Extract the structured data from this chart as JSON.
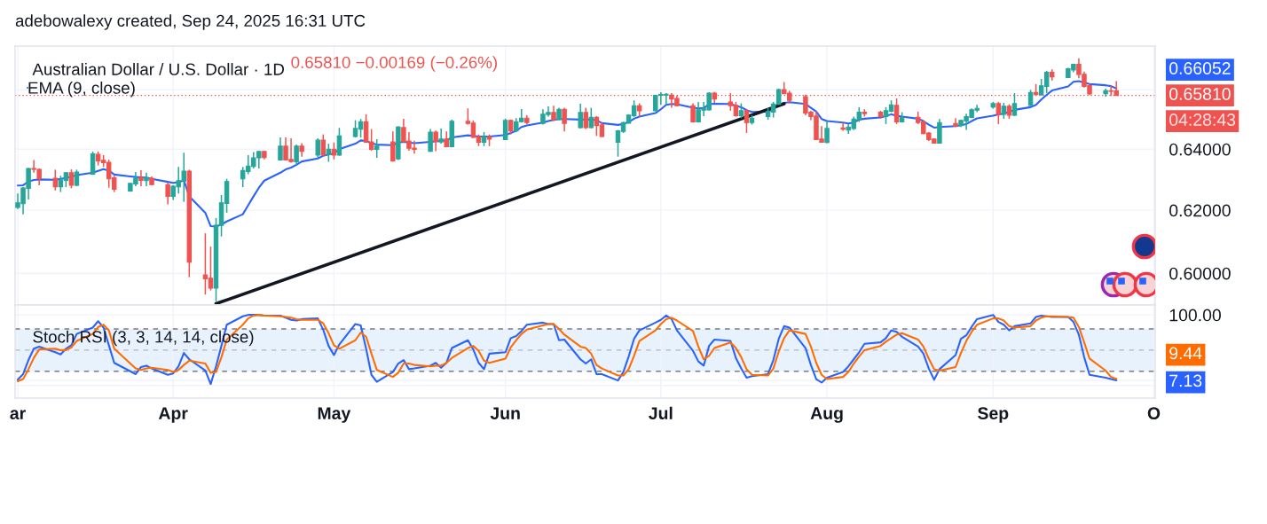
{
  "chart_data": [
    {
      "type": "candlestick",
      "title": "Australian Dollar / U.S. Dollar · 1D",
      "annotations": [
        "adebowalexy created, Sep 24, 2025 16:31 UTC",
        "0.65810 −0.00169 (−0.26%)",
        "04:28:43",
        "0.66052"
      ],
      "x": [
        "2025-03-03",
        "2025-03-04",
        "2025-03-05",
        "2025-03-06",
        "2025-03-07",
        "2025-03-10",
        "2025-03-11",
        "2025-03-12",
        "2025-03-13",
        "2025-03-14",
        "2025-03-17",
        "2025-03-18",
        "2025-03-19",
        "2025-03-20",
        "2025-03-21",
        "2025-03-24",
        "2025-03-25",
        "2025-03-26",
        "2025-03-27",
        "2025-03-28",
        "2025-03-31",
        "2025-04-01",
        "2025-04-02",
        "2025-04-03",
        "2025-04-04",
        "2025-04-07",
        "2025-04-08",
        "2025-04-09",
        "2025-04-10",
        "2025-04-11",
        "2025-04-14",
        "2025-04-15",
        "2025-04-16",
        "2025-04-17",
        "2025-04-18",
        "2025-04-21",
        "2025-04-22",
        "2025-04-23",
        "2025-04-24",
        "2025-04-25",
        "2025-04-28",
        "2025-04-29",
        "2025-04-30",
        "2025-05-01",
        "2025-05-02",
        "2025-05-05",
        "2025-05-06",
        "2025-05-07",
        "2025-05-08",
        "2025-05-09",
        "2025-05-12",
        "2025-05-13",
        "2025-05-14",
        "2025-05-15",
        "2025-05-16",
        "2025-05-19",
        "2025-05-20",
        "2025-05-21",
        "2025-05-22",
        "2025-05-23",
        "2025-05-26",
        "2025-05-27",
        "2025-05-28",
        "2025-05-29",
        "2025-05-30",
        "2025-06-02",
        "2025-06-03",
        "2025-06-04",
        "2025-06-05",
        "2025-06-06",
        "2025-06-09",
        "2025-06-10",
        "2025-06-11",
        "2025-06-12",
        "2025-06-13",
        "2025-06-16",
        "2025-06-17",
        "2025-06-18",
        "2025-06-19",
        "2025-06-20",
        "2025-06-23",
        "2025-06-24",
        "2025-06-25",
        "2025-06-26",
        "2025-06-27",
        "2025-06-30",
        "2025-07-01",
        "2025-07-02",
        "2025-07-03",
        "2025-07-04",
        "2025-07-07",
        "2025-07-08",
        "2025-07-09",
        "2025-07-10",
        "2025-07-11",
        "2025-07-14",
        "2025-07-15",
        "2025-07-16",
        "2025-07-17",
        "2025-07-18",
        "2025-07-21",
        "2025-07-22",
        "2025-07-23",
        "2025-07-24",
        "2025-07-25",
        "2025-07-28",
        "2025-07-29",
        "2025-07-30",
        "2025-07-31",
        "2025-08-01",
        "2025-08-04",
        "2025-08-05",
        "2025-08-06",
        "2025-08-07",
        "2025-08-08",
        "2025-08-11",
        "2025-08-12",
        "2025-08-13",
        "2025-08-14",
        "2025-08-15",
        "2025-08-18",
        "2025-08-19",
        "2025-08-20",
        "2025-08-21",
        "2025-08-22",
        "2025-08-25",
        "2025-08-26",
        "2025-08-27",
        "2025-08-28",
        "2025-08-29",
        "2025-09-01",
        "2025-09-02",
        "2025-09-03",
        "2025-09-04",
        "2025-09-05",
        "2025-09-08",
        "2025-09-09",
        "2025-09-10",
        "2025-09-11",
        "2025-09-12",
        "2025-09-15",
        "2025-09-16",
        "2025-09-17",
        "2025-09-18",
        "2025-09-19",
        "2025-09-22",
        "2025-09-23",
        "2025-09-24"
      ],
      "ohlc": [
        [
          0.6209,
          0.6254,
          0.6204,
          0.6224
        ],
        [
          0.6221,
          0.6275,
          0.6187,
          0.6272
        ],
        [
          0.6271,
          0.6338,
          0.6235,
          0.6336
        ],
        [
          0.6336,
          0.6364,
          0.6322,
          0.6333
        ],
        [
          0.6333,
          0.6336,
          0.6281,
          0.6302
        ],
        [
          0.6304,
          0.6332,
          0.6264,
          0.6276
        ],
        [
          0.6276,
          0.6312,
          0.6259,
          0.6298
        ],
        [
          0.6297,
          0.6324,
          0.6275,
          0.6322
        ],
        [
          0.6322,
          0.6333,
          0.6271,
          0.6281
        ],
        [
          0.6281,
          0.6332,
          0.6278,
          0.6324
        ],
        [
          0.6317,
          0.6392,
          0.6315,
          0.6384
        ],
        [
          0.6383,
          0.6392,
          0.6346,
          0.6361
        ],
        [
          0.6363,
          0.638,
          0.6341,
          0.6355
        ],
        [
          0.6356,
          0.6365,
          0.6273,
          0.6302
        ],
        [
          0.6305,
          0.6312,
          0.6259,
          0.6268
        ],
        [
          0.6262,
          0.6289,
          0.626,
          0.6287
        ],
        [
          0.6285,
          0.6324,
          0.6278,
          0.6304
        ],
        [
          0.6306,
          0.633,
          0.6278,
          0.6297
        ],
        [
          0.6296,
          0.6322,
          0.6278,
          0.6306
        ],
        [
          0.6304,
          0.631,
          0.6281,
          0.6283
        ],
        [
          0.6283,
          0.6291,
          0.6219,
          0.6245
        ],
        [
          0.6245,
          0.6281,
          0.6233,
          0.6278
        ],
        [
          0.6276,
          0.6341,
          0.6254,
          0.6296
        ],
        [
          0.6295,
          0.6388,
          0.6227,
          0.6327
        ],
        [
          0.6327,
          0.6332,
          0.5988,
          0.6035
        ],
        [
          0.5995,
          0.6126,
          0.5934,
          0.5983
        ],
        [
          0.5985,
          0.6084,
          0.5947,
          0.5954
        ],
        [
          0.5954,
          0.6175,
          0.5913,
          0.6152
        ],
        [
          0.6151,
          0.6249,
          0.6116,
          0.6224
        ],
        [
          0.6222,
          0.6302,
          0.6192,
          0.6293
        ],
        [
          0.6302,
          0.6341,
          0.6275,
          0.6329
        ],
        [
          0.6326,
          0.638,
          0.6317,
          0.6344
        ],
        [
          0.6343,
          0.639,
          0.6336,
          0.6371
        ],
        [
          0.6371,
          0.6393,
          0.6336,
          0.6392
        ],
        [
          0.6392,
          0.6395,
          0.6366,
          0.6372
        ],
        [
          0.6364,
          0.6439,
          0.6362,
          0.641
        ],
        [
          0.641,
          0.6439,
          0.6363,
          0.6364
        ],
        [
          0.6366,
          0.6436,
          0.6355,
          0.6359
        ],
        [
          0.6358,
          0.6415,
          0.6348,
          0.641
        ],
        [
          0.641,
          0.642,
          0.6375,
          0.6393
        ],
        [
          0.638,
          0.6436,
          0.6369,
          0.643
        ],
        [
          0.643,
          0.6449,
          0.6378,
          0.638
        ],
        [
          0.6382,
          0.6418,
          0.6358,
          0.64
        ],
        [
          0.64,
          0.6422,
          0.6366,
          0.638
        ],
        [
          0.638,
          0.6471,
          0.6378,
          0.6444
        ],
        [
          0.6442,
          0.6497,
          0.6439,
          0.6469
        ],
        [
          0.6467,
          0.6501,
          0.6439,
          0.6492
        ],
        [
          0.6492,
          0.6517,
          0.6421,
          0.6423
        ],
        [
          0.6424,
          0.6467,
          0.6395,
          0.6399
        ],
        [
          0.6399,
          0.6433,
          0.6371,
          0.641
        ],
        [
          0.6424,
          0.6459,
          0.6358,
          0.6361
        ],
        [
          0.6368,
          0.6477,
          0.6364,
          0.6474
        ],
        [
          0.6472,
          0.6502,
          0.6422,
          0.6425
        ],
        [
          0.6427,
          0.6457,
          0.6395,
          0.6403
        ],
        [
          0.6403,
          0.6428,
          0.6385,
          0.6399
        ],
        [
          0.6393,
          0.6467,
          0.6391,
          0.6457
        ],
        [
          0.6457,
          0.6462,
          0.6393,
          0.6425
        ],
        [
          0.6424,
          0.6469,
          0.6418,
          0.6434
        ],
        [
          0.6434,
          0.6459,
          0.6406,
          0.6408
        ],
        [
          0.6408,
          0.6499,
          0.6406,
          0.6493
        ],
        [
          0.6493,
          0.6537,
          0.6482,
          0.6486
        ],
        [
          0.6487,
          0.6496,
          0.6437,
          0.6439
        ],
        [
          0.6441,
          0.6449,
          0.641,
          0.6423
        ],
        [
          0.6423,
          0.6457,
          0.641,
          0.6441
        ],
        [
          0.6441,
          0.6449,
          0.641,
          0.6433
        ],
        [
          0.6432,
          0.6502,
          0.643,
          0.6496
        ],
        [
          0.6496,
          0.6499,
          0.6449,
          0.6461
        ],
        [
          0.6461,
          0.6504,
          0.6457,
          0.6492
        ],
        [
          0.6492,
          0.6535,
          0.6489,
          0.6504
        ],
        [
          0.6504,
          0.6514,
          0.6484,
          0.6489
        ],
        [
          0.6486,
          0.6534,
          0.6482,
          0.6517
        ],
        [
          0.6516,
          0.6544,
          0.6509,
          0.6523
        ],
        [
          0.6523,
          0.6546,
          0.6494,
          0.6499
        ],
        [
          0.6499,
          0.6539,
          0.6497,
          0.6534
        ],
        [
          0.6534,
          0.6539,
          0.6459,
          0.6486
        ],
        [
          0.6472,
          0.6553,
          0.6469,
          0.6523
        ],
        [
          0.6523,
          0.6539,
          0.6467,
          0.6472
        ],
        [
          0.6472,
          0.6539,
          0.647,
          0.6507
        ],
        [
          0.6507,
          0.6511,
          0.6444,
          0.6479
        ],
        [
          0.6481,
          0.6489,
          0.644,
          0.6442
        ],
        [
          0.6423,
          0.6464,
          0.6375,
          0.6461
        ],
        [
          0.6459,
          0.6492,
          0.6454,
          0.6489
        ],
        [
          0.6487,
          0.6517,
          0.6486,
          0.6514
        ],
        [
          0.6512,
          0.6564,
          0.6507,
          0.6546
        ],
        [
          0.6546,
          0.6554,
          0.6509,
          0.6529
        ],
        [
          0.6529,
          0.6582,
          0.6527,
          0.6581
        ],
        [
          0.6582,
          0.6592,
          0.6549,
          0.6585
        ],
        [
          0.6582,
          0.6589,
          0.6549,
          0.6585
        ],
        [
          0.6582,
          0.6589,
          0.6539,
          0.6569
        ],
        [
          0.6571,
          0.6581,
          0.6544,
          0.6546
        ],
        [
          0.6546,
          0.6554,
          0.6489,
          0.6491
        ],
        [
          0.6491,
          0.6559,
          0.6489,
          0.6532
        ],
        [
          0.6531,
          0.6559,
          0.6511,
          0.6537
        ],
        [
          0.6532,
          0.6592,
          0.653,
          0.6589
        ],
        [
          0.6589,
          0.6594,
          0.6556,
          0.6569
        ],
        [
          0.6559,
          0.6589,
          0.6529,
          0.6546
        ],
        [
          0.6547,
          0.6559,
          0.6509,
          0.6512
        ],
        [
          0.6512,
          0.6554,
          0.6504,
          0.6529
        ],
        [
          0.6529,
          0.6534,
          0.6454,
          0.6489
        ],
        [
          0.6489,
          0.6514,
          0.6482,
          0.6504
        ],
        [
          0.6509,
          0.6539,
          0.6499,
          0.6526
        ],
        [
          0.6524,
          0.6559,
          0.6506,
          0.6552
        ],
        [
          0.6551,
          0.6604,
          0.6549,
          0.6601
        ],
        [
          0.6601,
          0.6627,
          0.6586,
          0.6587
        ],
        [
          0.6589,
          0.6597,
          0.6554,
          0.6564
        ],
        [
          0.6577,
          0.6584,
          0.6514,
          0.6521
        ],
        [
          0.6524,
          0.6529,
          0.6497,
          0.6509
        ],
        [
          0.6511,
          0.6527,
          0.643,
          0.6432
        ],
        [
          0.6434,
          0.6477,
          0.6421,
          0.6423
        ],
        [
          0.6422,
          0.6494,
          0.642,
          0.6469
        ],
        [
          0.6471,
          0.6489,
          0.6461,
          0.6467
        ],
        [
          0.6464,
          0.6484,
          0.6451,
          0.6474
        ],
        [
          0.6469,
          0.6509,
          0.6464,
          0.6501
        ],
        [
          0.6499,
          0.6541,
          0.6491,
          0.6524
        ],
        [
          0.6524,
          0.6534,
          0.6509,
          0.6519
        ],
        [
          0.6524,
          0.6529,
          0.6502,
          0.6509
        ],
        [
          0.6509,
          0.6541,
          0.6484,
          0.6529
        ],
        [
          0.6527,
          0.6564,
          0.6524,
          0.6549
        ],
        [
          0.6547,
          0.6571,
          0.6484,
          0.6491
        ],
        [
          0.6491,
          0.6524,
          0.6489,
          0.6506
        ],
        [
          0.6507,
          0.6526,
          0.6484,
          0.6489
        ],
        [
          0.6491,
          0.6496,
          0.645,
          0.6452
        ],
        [
          0.6454,
          0.6457,
          0.6427,
          0.6432
        ],
        [
          0.6434,
          0.6436,
          0.6418,
          0.642
        ],
        [
          0.642,
          0.6501,
          0.6418,
          0.6489
        ],
        [
          0.6486,
          0.6504,
          0.6474,
          0.6477
        ],
        [
          0.6479,
          0.6499,
          0.6474,
          0.6496
        ],
        [
          0.6494,
          0.6519,
          0.6464,
          0.6509
        ],
        [
          0.6506,
          0.6537,
          0.6504,
          0.6532
        ],
        [
          0.6531,
          0.6549,
          0.6524,
          0.6537
        ],
        [
          0.6542,
          0.6559,
          0.6536,
          0.6553
        ],
        [
          0.6553,
          0.6559,
          0.6484,
          0.6517
        ],
        [
          0.6517,
          0.6556,
          0.6502,
          0.6544
        ],
        [
          0.6544,
          0.6551,
          0.6502,
          0.6514
        ],
        [
          0.6514,
          0.6589,
          0.6511,
          0.6553
        ],
        [
          0.6547,
          0.66,
          0.6545,
          0.6591
        ],
        [
          0.6591,
          0.662,
          0.6582,
          0.6584
        ],
        [
          0.6583,
          0.6638,
          0.6581,
          0.6614
        ],
        [
          0.6612,
          0.6666,
          0.6589,
          0.6661
        ],
        [
          0.6661,
          0.6671,
          0.6632,
          0.6645
        ],
        [
          0.6643,
          0.6676,
          0.6641,
          0.6673
        ],
        [
          0.6669,
          0.6689,
          0.6661,
          0.6688
        ],
        [
          0.6688,
          0.6709,
          0.664,
          0.6653
        ],
        [
          0.6654,
          0.6663,
          0.6608,
          0.6612
        ],
        [
          0.6615,
          0.662,
          0.6582,
          0.6586
        ],
        [
          0.6587,
          0.6604,
          0.6577,
          0.6597
        ],
        [
          0.6597,
          0.6615,
          0.6579,
          0.6595
        ],
        [
          0.6597,
          0.663,
          0.6581,
          0.6581
        ]
      ],
      "colors": [
        "#26a69a",
        "#26a69a",
        "#26a69a",
        "#ef5350",
        "#ef5350",
        "#ef5350",
        "#26a69a",
        "#26a69a",
        "#ef5350",
        "#26a69a",
        "#26a69a",
        "#ef5350",
        "#ef5350",
        "#ef5350",
        "#ef5350",
        "#26a69a",
        "#26a69a",
        "#ef5350",
        "#26a69a",
        "#ef5350",
        "#ef5350",
        "#26a69a",
        "#26a69a",
        "#26a69a",
        "#ef5350",
        "#ef5350",
        "#ef5350",
        "#26a69a",
        "#26a69a",
        "#26a69a",
        "#26a69a",
        "#26a69a",
        "#26a69a",
        "#26a69a",
        "#ef5350",
        "#26a69a",
        "#ef5350",
        "#ef5350",
        "#26a69a",
        "#ef5350",
        "#26a69a",
        "#ef5350",
        "#26a69a",
        "#ef5350",
        "#26a69a",
        "#26a69a",
        "#26a69a",
        "#ef5350",
        "#ef5350",
        "#26a69a",
        "#ef5350",
        "#26a69a",
        "#ef5350",
        "#ef5350",
        "#ef5350",
        "#26a69a",
        "#ef5350",
        "#26a69a",
        "#ef5350",
        "#26a69a",
        "#ef5350",
        "#ef5350",
        "#ef5350",
        "#26a69a",
        "#ef5350",
        "#26a69a",
        "#ef5350",
        "#26a69a",
        "#26a69a",
        "#ef5350",
        "#26a69a",
        "#26a69a",
        "#ef5350",
        "#26a69a",
        "#ef5350",
        "#26a69a",
        "#ef5350",
        "#26a69a",
        "#ef5350",
        "#ef5350",
        "#26a69a",
        "#26a69a",
        "#26a69a",
        "#26a69a",
        "#ef5350",
        "#26a69a",
        "#26a69a",
        "#26a69a",
        "#ef5350",
        "#ef5350",
        "#ef5350",
        "#26a69a",
        "#26a69a",
        "#26a69a",
        "#ef5350",
        "#ef5350",
        "#ef5350",
        "#26a69a",
        "#ef5350",
        "#26a69a",
        "#26a69a",
        "#26a69a",
        "#26a69a",
        "#ef5350",
        "#ef5350",
        "#ef5350",
        "#ef5350",
        "#ef5350",
        "#ef5350",
        "#26a69a",
        "#ef5350",
        "#26a69a",
        "#26a69a",
        "#26a69a",
        "#ef5350",
        "#ef5350",
        "#26a69a",
        "#26a69a",
        "#ef5350",
        "#26a69a",
        "#ef5350",
        "#ef5350",
        "#ef5350",
        "#ef5350",
        "#26a69a",
        "#ef5350",
        "#26a69a",
        "#26a69a",
        "#26a69a",
        "#26a69a",
        "#26a69a",
        "#ef5350",
        "#26a69a",
        "#ef5350",
        "#26a69a",
        "#26a69a",
        "#ef5350",
        "#26a69a",
        "#26a69a",
        "#ef5350",
        "#26a69a",
        "#26a69a",
        "#ef5350",
        "#ef5350",
        "#ef5350",
        "#26a69a",
        "#ef5350",
        "#ef5350"
      ],
      "series": [
        {
          "name": "EMA (9, close)",
          "type": "line",
          "color": "#2962ff",
          "values": [
            0.628,
            0.6281,
            0.6293,
            0.6298,
            0.63,
            0.6299,
            0.6302,
            0.6305,
            0.6309,
            0.6314,
            0.6322,
            0.6328,
            0.6334,
            0.6329,
            0.6316,
            0.631,
            0.6308,
            0.6307,
            0.6306,
            0.6302,
            0.6292,
            0.6289,
            0.6291,
            0.6297,
            0.6245,
            0.6192,
            0.6149,
            0.6148,
            0.6154,
            0.6164,
            0.6187,
            0.6216,
            0.6245,
            0.6273,
            0.6296,
            0.6322,
            0.6333,
            0.6339,
            0.6348,
            0.6359,
            0.6369,
            0.6378,
            0.6382,
            0.6385,
            0.64,
            0.6418,
            0.6429,
            0.6427,
            0.642,
            0.6415,
            0.6413,
            0.6422,
            0.6424,
            0.6422,
            0.642,
            0.6424,
            0.6426,
            0.6428,
            0.6429,
            0.6439,
            0.6446,
            0.6444,
            0.6442,
            0.6442,
            0.6442,
            0.6447,
            0.6454,
            0.6461,
            0.6474,
            0.6479,
            0.6489,
            0.6494,
            0.6498,
            0.6501,
            0.6501,
            0.6499,
            0.6499,
            0.6499,
            0.6497,
            0.6487,
            0.6481,
            0.6484,
            0.6491,
            0.6502,
            0.6509,
            0.6521,
            0.6534,
            0.6549,
            0.6552,
            0.6551,
            0.6539,
            0.6537,
            0.6538,
            0.6551,
            0.6553,
            0.6552,
            0.6546,
            0.6541,
            0.6531,
            0.6525,
            0.6526,
            0.6534,
            0.6549,
            0.6556,
            0.6558,
            0.6552,
            0.6539,
            0.6526,
            0.6501,
            0.6494,
            0.6489,
            0.6486,
            0.6489,
            0.6499,
            0.6502,
            0.6506,
            0.6511,
            0.6517,
            0.6512,
            0.6509,
            0.6502,
            0.6494,
            0.6482,
            0.6472,
            0.6474,
            0.6477,
            0.648,
            0.6484,
            0.6494,
            0.6503,
            0.6512,
            0.6517,
            0.6519,
            0.6526,
            0.6532,
            0.6541,
            0.6549,
            0.6567,
            0.6583,
            0.6598,
            0.6612,
            0.6628,
            0.663,
            0.6625,
            0.662,
            0.6616,
            0.6613,
            0.66052
          ]
        },
        {
          "type": "line",
          "color": "#131722",
          "x": [
            "2025-04-09",
            "2025-07-24"
          ],
          "values": [
            0.5906,
            0.6553
          ]
        }
      ],
      "ref_lines": [
        {
          "axis": "y",
          "value": 0.6581,
          "label": "0.65810",
          "color": "#ef5350",
          "line_style": "dotted"
        }
      ],
      "log": true,
      "ylim": [
        0.5902,
        0.6752
      ],
      "yticks": [
        {
          "value": 0.6,
          "label": "0.60000"
        },
        {
          "value": 0.62,
          "label": "0.62000"
        },
        {
          "value": 0.64,
          "label": "0.64000"
        },
        {
          "value": 0.66,
          "label": null
        }
      ],
      "xlim": [
        "2025-03-02T12:00",
        "2025-10-01T06:00"
      ],
      "xticks": [
        {
          "value": "2025-03-03",
          "label": null
        },
        {
          "value": "2025-04-01",
          "label": null
        },
        {
          "value": "2025-05-01",
          "label": null
        },
        {
          "value": "2025-06-02",
          "label": null
        },
        {
          "value": "2025-07-01",
          "label": null
        },
        {
          "value": "2025-08-01",
          "label": null
        },
        {
          "value": "2025-09-01",
          "label": null
        },
        {
          "value": "2025-10-01",
          "label": null
        }
      ],
      "tick_labels": "y",
      "grid": true,
      "legend": "top left"
    },
    {
      "type": "line",
      "title": "Stoch RSI (3, 3, 14, 14, close)",
      "annotations": [
        "9.44"
      ],
      "x": [
        "2025-03-03",
        "2025-03-04",
        "2025-03-05",
        "2025-03-06",
        "2025-03-07",
        "2025-03-10",
        "2025-03-11",
        "2025-03-12",
        "2025-03-13",
        "2025-03-14",
        "2025-03-17",
        "2025-03-18",
        "2025-03-19",
        "2025-03-20",
        "2025-03-21",
        "2025-03-24",
        "2025-03-25",
        "2025-03-26",
        "2025-03-27",
        "2025-03-28",
        "2025-03-31",
        "2025-04-01",
        "2025-04-02",
        "2025-04-03",
        "2025-04-04",
        "2025-04-07",
        "2025-04-08",
        "2025-04-09",
        "2025-04-10",
        "2025-04-11",
        "2025-04-14",
        "2025-04-15",
        "2025-04-16",
        "2025-04-17",
        "2025-04-18",
        "2025-04-21",
        "2025-04-22",
        "2025-04-23",
        "2025-04-24",
        "2025-04-25",
        "2025-04-28",
        "2025-04-29",
        "2025-04-30",
        "2025-05-01",
        "2025-05-02",
        "2025-05-05",
        "2025-05-06",
        "2025-05-07",
        "2025-05-08",
        "2025-05-09",
        "2025-05-12",
        "2025-05-13",
        "2025-05-14",
        "2025-05-15",
        "2025-05-16",
        "2025-05-19",
        "2025-05-20",
        "2025-05-21",
        "2025-05-22",
        "2025-05-23",
        "2025-05-26",
        "2025-05-27",
        "2025-05-28",
        "2025-05-29",
        "2025-05-30",
        "2025-06-02",
        "2025-06-03",
        "2025-06-04",
        "2025-06-05",
        "2025-06-06",
        "2025-06-09",
        "2025-06-10",
        "2025-06-11",
        "2025-06-12",
        "2025-06-13",
        "2025-06-16",
        "2025-06-17",
        "2025-06-18",
        "2025-06-19",
        "2025-06-20",
        "2025-06-23",
        "2025-06-24",
        "2025-06-25",
        "2025-06-26",
        "2025-06-27",
        "2025-06-30",
        "2025-07-01",
        "2025-07-02",
        "2025-07-03",
        "2025-07-04",
        "2025-07-07",
        "2025-07-08",
        "2025-07-09",
        "2025-07-10",
        "2025-07-11",
        "2025-07-14",
        "2025-07-15",
        "2025-07-16",
        "2025-07-17",
        "2025-07-18",
        "2025-07-21",
        "2025-07-22",
        "2025-07-23",
        "2025-07-24",
        "2025-07-25",
        "2025-07-28",
        "2025-07-29",
        "2025-07-30",
        "2025-07-31",
        "2025-08-01",
        "2025-08-04",
        "2025-08-05",
        "2025-08-06",
        "2025-08-07",
        "2025-08-08",
        "2025-08-11",
        "2025-08-12",
        "2025-08-13",
        "2025-08-14",
        "2025-08-15",
        "2025-08-18",
        "2025-08-19",
        "2025-08-20",
        "2025-08-21",
        "2025-08-22",
        "2025-08-25",
        "2025-08-26",
        "2025-08-27",
        "2025-08-28",
        "2025-08-29",
        "2025-09-01",
        "2025-09-02",
        "2025-09-03",
        "2025-09-04",
        "2025-09-05",
        "2025-09-08",
        "2025-09-09",
        "2025-09-10",
        "2025-09-11",
        "2025-09-12",
        "2025-09-15",
        "2025-09-16",
        "2025-09-17",
        "2025-09-18",
        "2025-09-19",
        "2025-09-22",
        "2025-09-23",
        "2025-09-24"
      ],
      "series": [
        {
          "color": "#2962ff",
          "values": [
            8,
            16,
            36,
            52,
            55,
            47,
            44,
            52,
            57,
            73,
            82,
            91,
            82,
            57,
            32,
            20,
            16,
            26,
            28,
            24,
            15,
            17,
            27,
            46,
            37,
            21,
            2,
            27,
            56,
            86,
            98,
            100,
            100,
            100,
            99,
            99,
            96,
            93,
            92,
            94,
            95,
            79,
            56,
            43,
            58,
            87,
            85,
            52,
            15,
            5,
            19,
            31,
            36,
            23,
            24,
            28,
            32,
            25,
            32,
            53,
            64,
            51,
            32,
            23,
            45,
            47,
            67,
            70,
            77,
            86,
            89,
            87,
            87,
            64,
            65,
            37,
            31,
            37,
            16,
            16,
            7,
            19,
            41,
            66,
            78,
            89,
            93,
            99,
            94,
            78,
            49,
            34,
            28,
            56,
            65,
            63,
            39,
            24,
            11,
            13,
            16,
            36,
            66,
            84,
            82,
            53,
            29,
            9,
            4,
            11,
            19,
            27,
            37,
            47,
            59,
            61,
            67,
            78,
            76,
            69,
            55,
            45,
            24,
            8,
            23,
            43,
            66,
            71,
            83,
            94,
            100,
            90,
            86,
            78,
            84,
            88,
            97,
            99,
            98,
            97,
            97,
            90,
            72,
            40,
            15,
            11,
            9,
            7.13
          ]
        },
        {
          "color": "#ff6d00",
          "values": [
            6,
            9,
            23,
            39,
            51,
            52,
            50,
            50,
            54,
            63,
            73,
            83,
            86,
            78,
            52,
            31,
            24,
            22,
            24,
            25,
            22,
            19,
            22,
            29,
            35,
            31,
            18,
            19,
            40,
            65,
            86,
            95,
            99,
            100,
            99,
            98,
            97,
            96,
            94,
            93,
            93,
            88,
            74,
            57,
            52,
            64,
            75,
            69,
            45,
            22,
            12,
            18,
            31,
            31,
            29,
            27,
            28,
            28,
            32,
            39,
            53,
            56,
            49,
            35,
            32,
            38,
            54,
            64,
            73,
            79,
            85,
            87,
            87,
            80,
            72,
            55,
            53,
            45,
            29,
            24,
            14,
            14,
            23,
            42,
            63,
            78,
            87,
            94,
            96,
            92,
            77,
            55,
            37,
            42,
            53,
            61,
            53,
            40,
            23,
            15,
            14,
            24,
            48,
            67,
            78,
            73,
            55,
            32,
            15,
            9,
            12,
            19,
            31,
            41,
            50,
            56,
            62,
            67,
            72,
            74,
            65,
            55,
            38,
            23,
            21,
            26,
            46,
            63,
            76,
            86,
            95,
            95,
            92,
            84,
            82,
            84,
            92,
            96,
            98,
            98,
            97,
            96,
            83,
            61,
            38,
            21,
            12,
            9.44
          ]
        }
      ],
      "ref_lines": [
        {
          "axis": "y",
          "value": 80,
          "color": "#787b86",
          "line_style": "dashed"
        },
        {
          "axis": "y",
          "value": 50,
          "color": "#b2b5be",
          "line_style": "dashed"
        },
        {
          "axis": "y",
          "value": 20,
          "color": "#787b86",
          "line_style": "dashed"
        }
      ],
      "bands": [
        {
          "axis": "y",
          "from": 20,
          "to": 80,
          "color": "#e8f2fd"
        }
      ],
      "ylim": [
        -18,
        114
      ],
      "yticks": [
        {
          "value": 100,
          "label": "100.00"
        },
        {
          "value": 7.13,
          "label": "7.13"
        },
        {
          "value": 0,
          "label": null
        }
      ],
      "xlim": [
        "2025-03-02T12:00",
        "2025-10-01T06:00"
      ],
      "xticks": [
        {
          "value": "2025-03-03",
          "label": "ar"
        },
        {
          "value": "2025-04-01",
          "label": "Apr"
        },
        {
          "value": "2025-05-01",
          "label": "May"
        },
        {
          "value": "2025-06-02",
          "label": "Jun"
        },
        {
          "value": "2025-07-01",
          "label": "Jul"
        },
        {
          "value": "2025-08-01",
          "label": "Aug"
        },
        {
          "value": "2025-09-01",
          "label": "Sep"
        },
        {
          "value": "2025-10-01",
          "label": "O"
        }
      ],
      "grid": true
    }
  ]
}
